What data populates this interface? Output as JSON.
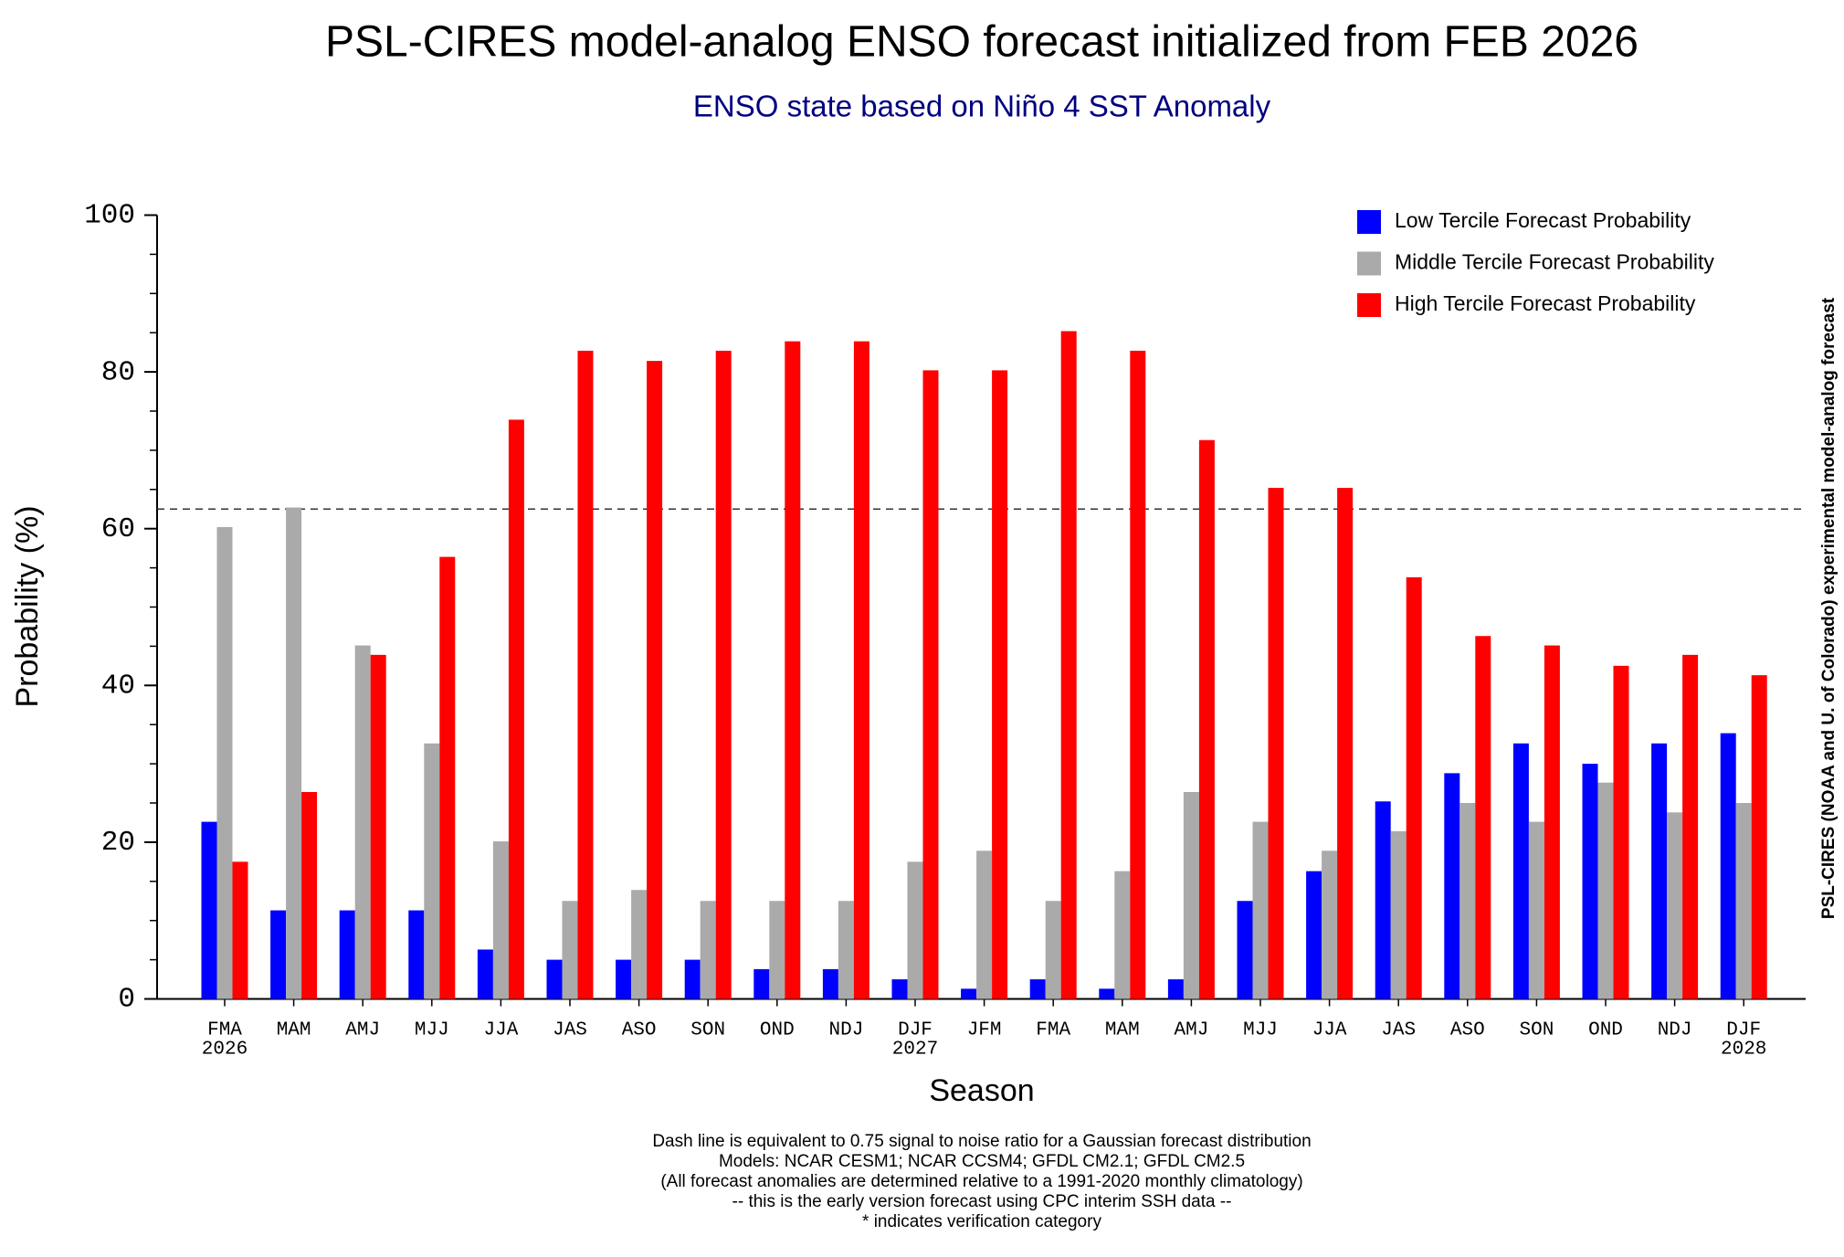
{
  "chart_data": {
    "type": "bar",
    "title": "PSL-CIRES model-analog ENSO forecast initialized from FEB 2026",
    "subtitle": "ENSO state based on Niño 4 SST Anomaly",
    "xlabel": "Season",
    "ylabel": "Probability (%)",
    "side_note": "PSL-CIRES (NOAA and U. of Colorado) experimental model-analog forecast",
    "footnotes": [
      "Dash line is equivalent to 0.75 signal to noise ratio for a Gaussian forecast distribution",
      "Models: NCAR CESM1; NCAR CCSM4; GFDL CM2.1; GFDL CM2.5",
      "(All forecast anomalies are determined relative to a 1991-2020 monthly climatology)",
      "-- this is the early version forecast using CPC interim SSH data --",
      "* indicates verification category"
    ],
    "categories": [
      "FMA",
      "MAM",
      "AMJ",
      "MJJ",
      "JJA",
      "JAS",
      "ASO",
      "SON",
      "OND",
      "NDJ",
      "DJF",
      "JFM",
      "FMA",
      "MAM",
      "AMJ",
      "MJJ",
      "JJA",
      "JAS",
      "ASO",
      "SON",
      "OND",
      "NDJ",
      "DJF"
    ],
    "category_years": [
      "2026",
      null,
      null,
      null,
      null,
      null,
      null,
      null,
      null,
      null,
      "2027",
      null,
      null,
      null,
      null,
      null,
      null,
      null,
      null,
      null,
      null,
      null,
      "2028"
    ],
    "series": [
      {
        "name": "Low Tercile Forecast Probability",
        "color": "#0000ff",
        "values": [
          22.6,
          11.3,
          11.3,
          11.3,
          6.3,
          5.0,
          5.0,
          5.0,
          3.8,
          3.8,
          2.5,
          1.3,
          2.5,
          1.3,
          2.5,
          12.5,
          16.3,
          25.2,
          28.8,
          32.6,
          30.0,
          32.6,
          33.9
        ]
      },
      {
        "name": "Middle Tercile Forecast Probability",
        "color": "#aaaaaa",
        "values": [
          60.2,
          62.7,
          45.1,
          32.6,
          20.1,
          12.5,
          13.9,
          12.5,
          12.5,
          12.5,
          17.5,
          18.9,
          12.5,
          16.3,
          26.4,
          22.6,
          18.9,
          21.4,
          25.0,
          22.6,
          27.6,
          23.8,
          25.0
        ]
      },
      {
        "name": "High Tercile Forecast Probability",
        "color": "#ff0000",
        "values": [
          17.5,
          26.4,
          43.9,
          56.4,
          73.9,
          82.7,
          81.4,
          82.7,
          83.9,
          83.9,
          80.2,
          80.2,
          85.2,
          82.7,
          71.3,
          65.2,
          65.2,
          53.8,
          46.3,
          45.1,
          42.5,
          43.9,
          41.3
        ]
      }
    ],
    "reference_line": 62.5,
    "ylim": [
      0,
      100
    ],
    "yticks": [
      0,
      20,
      40,
      60,
      80,
      100
    ],
    "yticks_minor": [
      5,
      10,
      15,
      25,
      30,
      35,
      45,
      50,
      55,
      65,
      70,
      75,
      85,
      90,
      95
    ],
    "legend": "upper right",
    "grid": false
  }
}
